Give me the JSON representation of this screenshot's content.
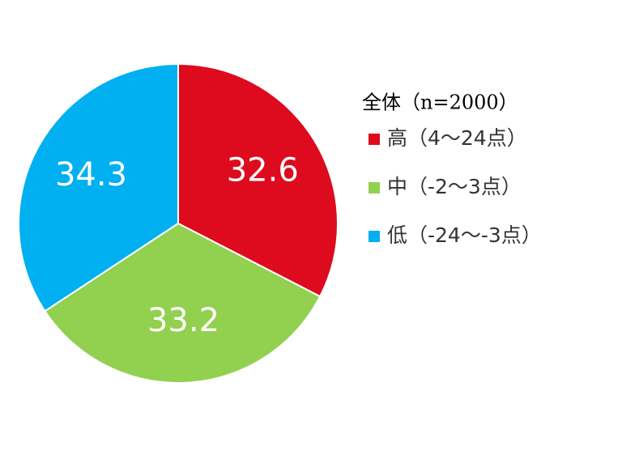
{
  "chart_data": {
    "type": "pie",
    "legend_title": "全体（n=2000）",
    "categories": [
      "高（4～24点）",
      "中（-2～3点）",
      "低（-24～-3点）"
    ],
    "values": [
      32.6,
      33.2,
      34.3
    ],
    "colors": [
      "#de0a1e",
      "#92d050",
      "#00b0f0"
    ],
    "legend": "right"
  }
}
